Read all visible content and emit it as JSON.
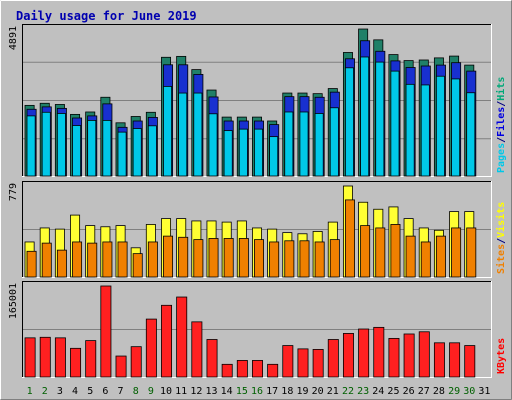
{
  "chart_data": {
    "type": "bar",
    "title": "Daily usage for June 2019",
    "categories": [
      "1",
      "2",
      "3",
      "4",
      "5",
      "6",
      "7",
      "8",
      "9",
      "10",
      "11",
      "12",
      "13",
      "14",
      "15",
      "16",
      "17",
      "18",
      "19",
      "20",
      "21",
      "22",
      "23",
      "24",
      "25",
      "26",
      "27",
      "28",
      "29",
      "30",
      "31"
    ],
    "weekend_days": [
      "1",
      "2",
      "8",
      "9",
      "15",
      "16",
      "22",
      "23",
      "29",
      "30"
    ],
    "panels": [
      {
        "name": "hits-files-pages",
        "ymax_label": "4891",
        "ylim": [
          0,
          4891
        ],
        "labels": [
          {
            "text": "Pages",
            "color": "#00c8e8"
          },
          {
            "text": "/",
            "color": "#000080"
          },
          {
            "text": "Files",
            "color": "#0000e0"
          },
          {
            "text": "/",
            "color": "#000080"
          },
          {
            "text": "Hits",
            "color": "#00a878"
          }
        ],
        "series": [
          {
            "name": "Hits",
            "color": "#208068",
            "values": [
              2350,
              2420,
              2380,
              2050,
              2130,
              2620,
              1770,
              1980,
              2120,
              3950,
              3980,
              3540,
              2860,
              1960,
              1960,
              1960,
              1830,
              2760,
              2760,
              2740,
              2910,
              4110,
              4890,
              4530,
              4040,
              3840,
              3860,
              3930,
              3990,
              3690,
              null
            ]
          },
          {
            "name": "Files",
            "color": "#1830d0",
            "values": [
              2220,
              2300,
              2250,
              1930,
              2000,
              2400,
              1620,
              1830,
              1950,
              3700,
              3700,
              3380,
              2630,
              1830,
              1830,
              1830,
              1710,
              2640,
              2640,
              2620,
              2790,
              3900,
              4500,
              4150,
              3830,
              3610,
              3660,
              3690,
              3770,
              3490,
              null
            ]
          },
          {
            "name": "Pages",
            "color": "#00c8e8",
            "values": [
              2000,
              2120,
              2080,
              1680,
              1850,
              1850,
              1460,
              1580,
              1670,
              2980,
              2760,
              2760,
              2070,
              1510,
              1560,
              1560,
              1310,
              2130,
              2130,
              2080,
              2270,
              3600,
              3960,
              3790,
              3490,
              3050,
              3030,
              3320,
              3230,
              2770,
              null
            ]
          }
        ]
      },
      {
        "name": "sites-visits",
        "ymax_label": "779",
        "ylim": [
          0,
          779
        ],
        "labels": [
          {
            "text": "Sites",
            "color": "#f08000"
          },
          {
            "text": "/",
            "color": "#000080"
          },
          {
            "text": "Visits",
            "color": "#ffff00"
          }
        ],
        "series": [
          {
            "name": "Visits",
            "color": "#ffff33",
            "values": [
              300,
              420,
              410,
              530,
              440,
              430,
              440,
              250,
              450,
              500,
              500,
              480,
              480,
              470,
              480,
              420,
              410,
              380,
              370,
              390,
              470,
              779,
              640,
              580,
              600,
              500,
              420,
              400,
              560,
              560,
              null
            ]
          },
          {
            "name": "Sites",
            "color": "#f08000",
            "values": [
              220,
              290,
              230,
              300,
              290,
              300,
              300,
              200,
              300,
              350,
              340,
              320,
              330,
              330,
              330,
              320,
              300,
              310,
              310,
              300,
              320,
              660,
              440,
              420,
              450,
              350,
              300,
              350,
              420,
              420,
              null
            ]
          }
        ]
      },
      {
        "name": "kbytes",
        "ymax_label": "165001",
        "ylim": [
          0,
          165001
        ],
        "labels": [
          {
            "text": "KBytes",
            "color": "#ff0000"
          }
        ],
        "series": [
          {
            "name": "KBytes",
            "color": "#ff2020",
            "values": [
              71000,
              72000,
              71000,
              52000,
              66000,
              165000,
              38000,
              55000,
              105000,
              130000,
              145000,
              100000,
              68000,
              23000,
              30000,
              30000,
              23000,
              57000,
              51000,
              50000,
              68000,
              79000,
              87000,
              90000,
              70000,
              78000,
              82000,
              62000,
              62000,
              57000,
              null
            ]
          }
        ]
      }
    ]
  }
}
